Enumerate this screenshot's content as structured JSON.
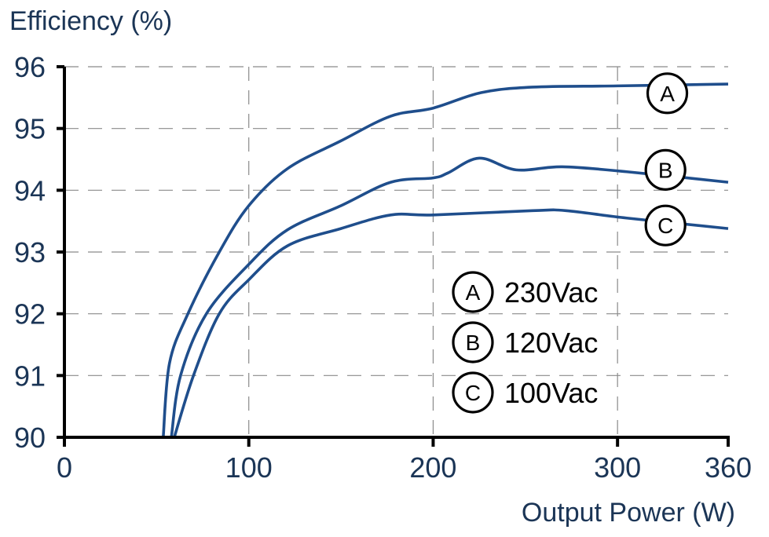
{
  "chart_data": {
    "type": "line",
    "title": "",
    "xlabel": "Output Power (W)",
    "ylabel": "Efficiency (%)",
    "xlim": [
      0,
      360
    ],
    "ylim": [
      90,
      96
    ],
    "xticks": [
      0,
      100,
      200,
      300,
      360
    ],
    "yticks": [
      90,
      91,
      92,
      93,
      94,
      95,
      96
    ],
    "grid": true,
    "line_color": "#1f4e8c",
    "series": [
      {
        "name": "230Vac",
        "marker": "A",
        "x": [
          53.6,
          57,
          67,
          84,
          100,
          121,
          150,
          177,
          200,
          226,
          254,
          300,
          360
        ],
        "y": [
          90,
          91.2,
          92.0,
          93.0,
          93.75,
          94.35,
          94.8,
          95.2,
          95.33,
          95.58,
          95.67,
          95.69,
          95.72
        ]
      },
      {
        "name": "120Vac",
        "marker": "B",
        "x": [
          58,
          63,
          77,
          100,
          121,
          150,
          177,
          200,
          208,
          225,
          245,
          270,
          305,
          360
        ],
        "y": [
          90,
          91,
          92,
          92.8,
          93.36,
          93.75,
          94.13,
          94.2,
          94.28,
          94.52,
          94.33,
          94.38,
          94.3,
          94.13
        ]
      },
      {
        "name": "100Vac",
        "marker": "C",
        "x": [
          59.6,
          70,
          84,
          100,
          121,
          150,
          177,
          200,
          254,
          272,
          305,
          360
        ],
        "y": [
          90,
          91,
          92,
          92.55,
          93.1,
          93.38,
          93.6,
          93.6,
          93.67,
          93.67,
          93.55,
          93.38
        ]
      }
    ],
    "curve_labels": [
      {
        "marker": "A",
        "x": 327,
        "y": 95.57
      },
      {
        "marker": "B",
        "x": 326,
        "y": 94.33
      },
      {
        "marker": "C",
        "x": 326,
        "y": 93.43
      }
    ],
    "legend": [
      {
        "marker": "A",
        "label": "230Vac"
      },
      {
        "marker": "B",
        "label": "120Vac"
      },
      {
        "marker": "C",
        "label": "100Vac"
      }
    ],
    "legend_placement": "lower-right"
  }
}
